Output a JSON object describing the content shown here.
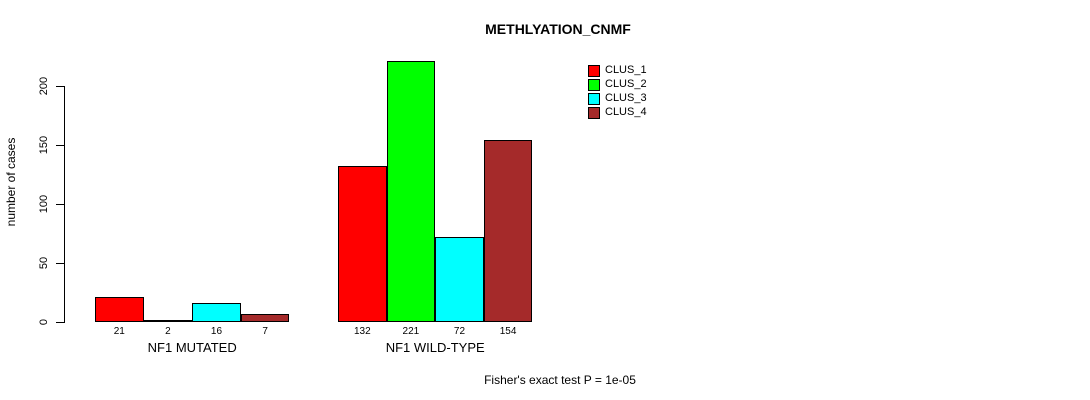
{
  "title": "METHLYATION_CNMF",
  "ylabel": "number of cases",
  "footer": "Fisher's exact test P = 1e-05",
  "chart_data": {
    "type": "bar",
    "title": "METHLYATION_CNMF",
    "xlabel": "",
    "ylabel": "number of cases",
    "categories": [
      "NF1 MUTATED",
      "NF1 WILD-TYPE"
    ],
    "series": [
      {
        "name": "CLUS_1",
        "color": "#ff0000",
        "values": [
          21,
          132
        ]
      },
      {
        "name": "CLUS_2",
        "color": "#00ff00",
        "values": [
          2,
          221
        ]
      },
      {
        "name": "CLUS_3",
        "color": "#00ffff",
        "values": [
          16,
          72
        ]
      },
      {
        "name": "CLUS_4",
        "color": "#a52a2a",
        "values": [
          7,
          154
        ]
      }
    ],
    "bar_value_labels": [
      [
        21,
        2,
        16,
        7
      ],
      [
        132,
        221,
        72,
        154
      ]
    ],
    "yticks": [
      0,
      50,
      100,
      150,
      200
    ],
    "ylim": [
      0,
      200
    ],
    "grid": false,
    "legend_position": "top-right",
    "legend_entries": [
      "CLUS_1",
      "CLUS_2",
      "CLUS_3",
      "CLUS_4"
    ],
    "annotation": "Fisher's exact test P = 1e-05"
  }
}
